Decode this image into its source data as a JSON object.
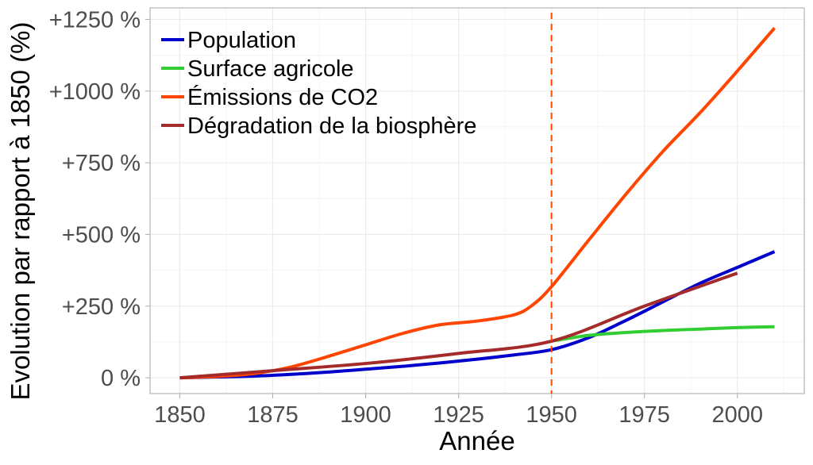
{
  "chart_data": {
    "type": "line",
    "title": "",
    "xlabel": "Année",
    "ylabel": "Evolution par rapport à 1850 (%)",
    "xlim": [
      1842,
      2018
    ],
    "ylim": [
      -55,
      1290
    ],
    "x_ticks": [
      {
        "value": 1850,
        "label": "1850"
      },
      {
        "value": 1875,
        "label": "1875"
      },
      {
        "value": 1900,
        "label": "1900"
      },
      {
        "value": 1925,
        "label": "1925"
      },
      {
        "value": 1950,
        "label": "1950"
      },
      {
        "value": 1975,
        "label": "1975"
      },
      {
        "value": 2000,
        "label": "2000"
      }
    ],
    "y_ticks": [
      {
        "value": 0,
        "label": "0 %"
      },
      {
        "value": 250,
        "label": "+250 %"
      },
      {
        "value": 500,
        "label": "+500 %"
      },
      {
        "value": 750,
        "label": "+750 %"
      },
      {
        "value": 1000,
        "label": "+1000 %"
      },
      {
        "value": 1250,
        "label": "+1250 %"
      }
    ],
    "grid": true,
    "legend_position": "top-left",
    "vline": {
      "x": 1950,
      "color": "#ff4500",
      "style": "dashed"
    },
    "series": [
      {
        "name": "Population",
        "color": "#0000cd",
        "x": [
          1850,
          1860,
          1870,
          1880,
          1890,
          1900,
          1910,
          1920,
          1930,
          1940,
          1950,
          1960,
          1970,
          1980,
          1990,
          2000,
          2010
        ],
        "y": [
          0,
          3,
          6,
          12,
          20,
          30,
          40,
          52,
          65,
          80,
          98,
          140,
          200,
          265,
          330,
          385,
          440
        ]
      },
      {
        "name": "Surface agricole",
        "color": "#32cd32",
        "x": [
          1950,
          1960,
          1970,
          1980,
          1990,
          2000,
          2010
        ],
        "y": [
          128,
          148,
          158,
          165,
          170,
          175,
          178
        ]
      },
      {
        "name": "Émissions de CO2",
        "color": "#ff4500",
        "x": [
          1850,
          1860,
          1870,
          1880,
          1890,
          1900,
          1910,
          1920,
          1930,
          1940,
          1945,
          1950,
          1960,
          1970,
          1980,
          1990,
          2000,
          2010
        ],
        "y": [
          0,
          5,
          15,
          38,
          75,
          115,
          155,
          185,
          198,
          220,
          255,
          318,
          480,
          640,
          790,
          925,
          1070,
          1220
        ]
      },
      {
        "name": "Dégradation de la biosphère",
        "color": "#a52a2a",
        "x": [
          1850,
          1875,
          1900,
          1925,
          1950,
          1975,
          2000
        ],
        "y": [
          0,
          25,
          50,
          85,
          128,
          250,
          365
        ]
      }
    ]
  }
}
